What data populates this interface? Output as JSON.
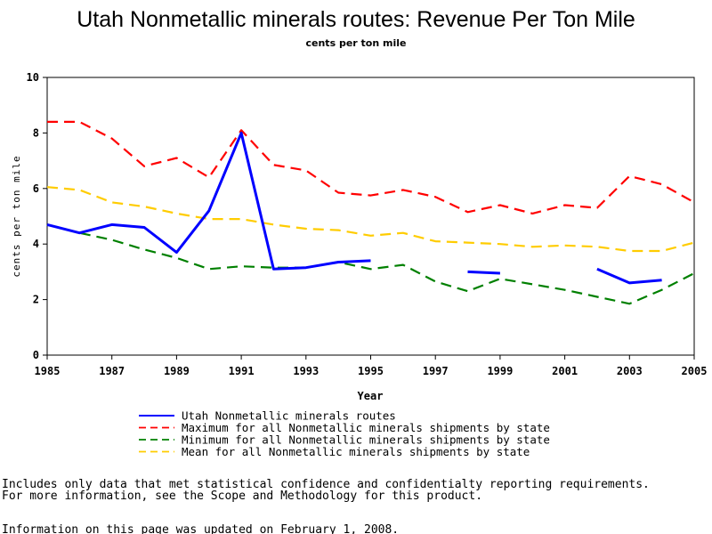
{
  "chart_data": {
    "type": "line",
    "title": "Utah Nonmetallic minerals routes: Revenue Per Ton Mile",
    "subtitle": "cents per ton mile",
    "xlabel": "Year",
    "ylabel": "cents per ton mile",
    "xlim": [
      1985,
      2005
    ],
    "ylim": [
      0,
      10
    ],
    "xticks": [
      "1985",
      "1987",
      "1989",
      "1991",
      "1993",
      "1995",
      "1997",
      "1999",
      "2001",
      "2003",
      "2005"
    ],
    "yticks": [
      "0",
      "2",
      "4",
      "6",
      "8",
      "10"
    ],
    "grid": false,
    "legend_position": "bottom",
    "series": [
      {
        "name": "Utah Nonmetallic minerals routes",
        "color": "#0000ff",
        "style": "solid",
        "x": [
          1985,
          1986,
          1987,
          1988,
          1989,
          1990,
          1991,
          1992,
          1993,
          1994,
          1995,
          1996,
          1997,
          1998,
          1999,
          2000,
          2001,
          2002,
          2003,
          2004,
          2005
        ],
        "values": [
          4.7,
          4.4,
          4.7,
          4.6,
          3.7,
          5.2,
          8.0,
          3.1,
          3.15,
          3.35,
          3.4,
          null,
          null,
          3.0,
          2.95,
          null,
          null,
          3.1,
          2.6,
          2.7,
          null
        ]
      },
      {
        "name": "Maximum for all Nonmetallic minerals shipments by state",
        "color": "#ff0000",
        "style": "dashed",
        "x": [
          1985,
          1986,
          1987,
          1988,
          1989,
          1990,
          1991,
          1992,
          1993,
          1994,
          1995,
          1996,
          1997,
          1998,
          1999,
          2000,
          2001,
          2002,
          2003,
          2004,
          2005
        ],
        "values": [
          8.4,
          8.4,
          7.8,
          6.8,
          7.1,
          6.4,
          8.1,
          6.85,
          6.65,
          5.85,
          5.75,
          5.95,
          5.7,
          5.15,
          5.4,
          5.1,
          5.4,
          5.3,
          6.45,
          6.15,
          5.5
        ]
      },
      {
        "name": "Minimum for all Nonmetallic minerals shipments by state",
        "color": "#008000",
        "style": "dashed",
        "x": [
          1985,
          1986,
          1987,
          1988,
          1989,
          1990,
          1991,
          1992,
          1993,
          1994,
          1995,
          1996,
          1997,
          1998,
          1999,
          2000,
          2001,
          2002,
          2003,
          2004,
          2005
        ],
        "values": [
          4.7,
          4.4,
          4.15,
          3.8,
          3.5,
          3.1,
          3.2,
          3.15,
          3.15,
          3.35,
          3.1,
          3.25,
          2.65,
          2.3,
          2.75,
          2.55,
          2.35,
          2.1,
          1.85,
          2.35,
          2.95
        ]
      },
      {
        "name": "Mean for all Nonmetallic minerals shipments by state",
        "color": "#ffcc00",
        "style": "dashed",
        "x": [
          1985,
          1986,
          1987,
          1988,
          1989,
          1990,
          1991,
          1992,
          1993,
          1994,
          1995,
          1996,
          1997,
          1998,
          1999,
          2000,
          2001,
          2002,
          2003,
          2004,
          2005
        ],
        "values": [
          6.05,
          5.95,
          5.5,
          5.35,
          5.1,
          4.9,
          4.9,
          4.7,
          4.55,
          4.5,
          4.3,
          4.4,
          4.1,
          4.05,
          4.0,
          3.9,
          3.95,
          3.9,
          3.75,
          3.75,
          4.05
        ]
      }
    ]
  },
  "notes": {
    "line1": "Includes only data that met statistical confidence and confidentialty reporting requirements.",
    "line2": "For more information, see the Scope and Methodology for this product.",
    "line3": "Information on this page was updated on February 1, 2008."
  }
}
